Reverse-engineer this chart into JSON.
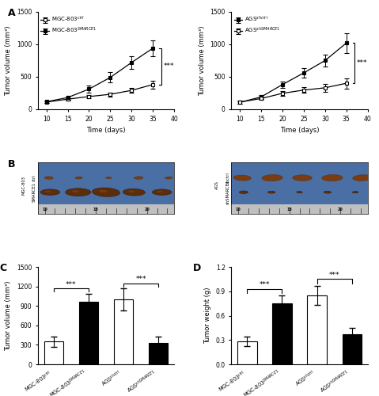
{
  "line_days": [
    10,
    15,
    20,
    25,
    30,
    35
  ],
  "mgc_ctrl_mean": [
    110,
    155,
    195,
    230,
    290,
    380
  ],
  "mgc_ctrl_err": [
    15,
    20,
    25,
    30,
    40,
    60
  ],
  "mgc_smarce1_mean": [
    115,
    180,
    310,
    490,
    720,
    940
  ],
  "mgc_smarce1_err": [
    20,
    30,
    50,
    80,
    100,
    120
  ],
  "ags_shctrl_mean": [
    105,
    190,
    380,
    560,
    750,
    1020
  ],
  "ags_shctrl_err": [
    15,
    30,
    50,
    70,
    90,
    150
  ],
  "ags_shsmarce1_mean": [
    110,
    165,
    245,
    295,
    330,
    400
  ],
  "ags_shsmarce1_err": [
    20,
    25,
    35,
    45,
    60,
    80
  ],
  "bar_categories": [
    "MGC-803$^{ctrl}$",
    "MGC-803$^{SMARCE1}$",
    "AGS$^{shctrl}$",
    "AGS$^{shSMARCE1}$"
  ],
  "bar_vol_mean": [
    350,
    960,
    1000,
    330
  ],
  "bar_vol_err": [
    80,
    130,
    170,
    100
  ],
  "bar_wt_mean": [
    0.28,
    0.75,
    0.85,
    0.37
  ],
  "bar_wt_err": [
    0.06,
    0.1,
    0.12,
    0.08
  ],
  "bar_colors_vol": [
    "white",
    "black",
    "white",
    "black"
  ],
  "bar_colors_wt": [
    "white",
    "black",
    "white",
    "black"
  ],
  "ylim_line": [
    0,
    1500
  ],
  "ylim_vol": [
    0,
    1500
  ],
  "ylim_wt": [
    0.0,
    1.2
  ],
  "ylabel_line": "Tumor volume (mm³)",
  "xlabel_line": "Time (days)",
  "ylabel_vol": "Tumor volume (mm³)",
  "ylabel_wt": "Tumor weight (g)",
  "panel_A_left_legend1": "MGC-803$^{ctrl}$",
  "panel_A_left_legend2": "MGC-803$^{SMARCE1}$",
  "panel_A_right_legend1": "AGS$^{shctrl}$",
  "panel_A_right_legend2": "AGS$^{shSMARCE1}$",
  "bg_color": "#4a6fa5",
  "tumor_color_dark": "#5c2d0a",
  "tumor_color_mid": "#7a3c12",
  "tumor_color_light": "#9a5020"
}
